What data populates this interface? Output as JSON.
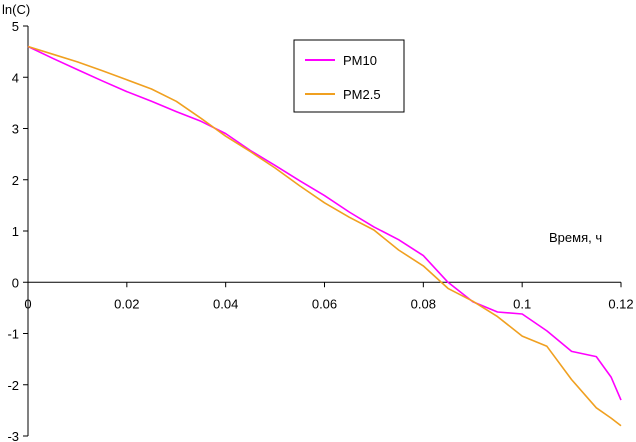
{
  "chart_data": {
    "type": "line",
    "title": "",
    "ylabel": "ln(C)",
    "xlabel": "Время, ч",
    "xlim": [
      0,
      0.12
    ],
    "ylim": [
      -3,
      5
    ],
    "x_ticks": [
      0,
      0.02,
      0.04,
      0.06,
      0.08,
      0.1,
      0.12
    ],
    "x_tick_labels": [
      "0",
      "0.02",
      "0.04",
      "0.06",
      "0.08",
      "0.1",
      "0.12"
    ],
    "y_ticks": [
      -3,
      -2,
      -1,
      0,
      1,
      2,
      3,
      4,
      5
    ],
    "y_tick_labels": [
      "-3",
      "-2",
      "-1",
      "0",
      "1",
      "2",
      "3",
      "4",
      "5"
    ],
    "grid": false,
    "legend_position": "top-center",
    "series": [
      {
        "name": "PM10",
        "color": "#ff00ff",
        "x": [
          0,
          0.005,
          0.01,
          0.015,
          0.02,
          0.025,
          0.03,
          0.035,
          0.04,
          0.045,
          0.05,
          0.055,
          0.06,
          0.065,
          0.07,
          0.075,
          0.08,
          0.085,
          0.09,
          0.095,
          0.1,
          0.105,
          0.11,
          0.115,
          0.118,
          0.12
        ],
        "y": [
          4.6,
          4.37,
          4.15,
          3.93,
          3.72,
          3.53,
          3.33,
          3.14,
          2.9,
          2.57,
          2.28,
          1.98,
          1.69,
          1.37,
          1.08,
          0.83,
          0.52,
          0.0,
          -0.38,
          -0.58,
          -0.62,
          -0.95,
          -1.35,
          -1.45,
          -1.85,
          -2.3
        ]
      },
      {
        "name": "PM2.5",
        "color": "#f0a020",
        "x": [
          0,
          0.005,
          0.01,
          0.015,
          0.02,
          0.025,
          0.03,
          0.035,
          0.04,
          0.045,
          0.05,
          0.055,
          0.06,
          0.065,
          0.07,
          0.075,
          0.08,
          0.085,
          0.09,
          0.095,
          0.1,
          0.105,
          0.11,
          0.115,
          0.118,
          0.12
        ],
        "y": [
          4.6,
          4.45,
          4.3,
          4.13,
          3.95,
          3.77,
          3.53,
          3.2,
          2.85,
          2.55,
          2.23,
          1.88,
          1.55,
          1.27,
          1.02,
          0.63,
          0.32,
          -0.12,
          -0.37,
          -0.67,
          -1.05,
          -1.25,
          -1.9,
          -2.45,
          -2.65,
          -2.8
        ]
      }
    ]
  }
}
